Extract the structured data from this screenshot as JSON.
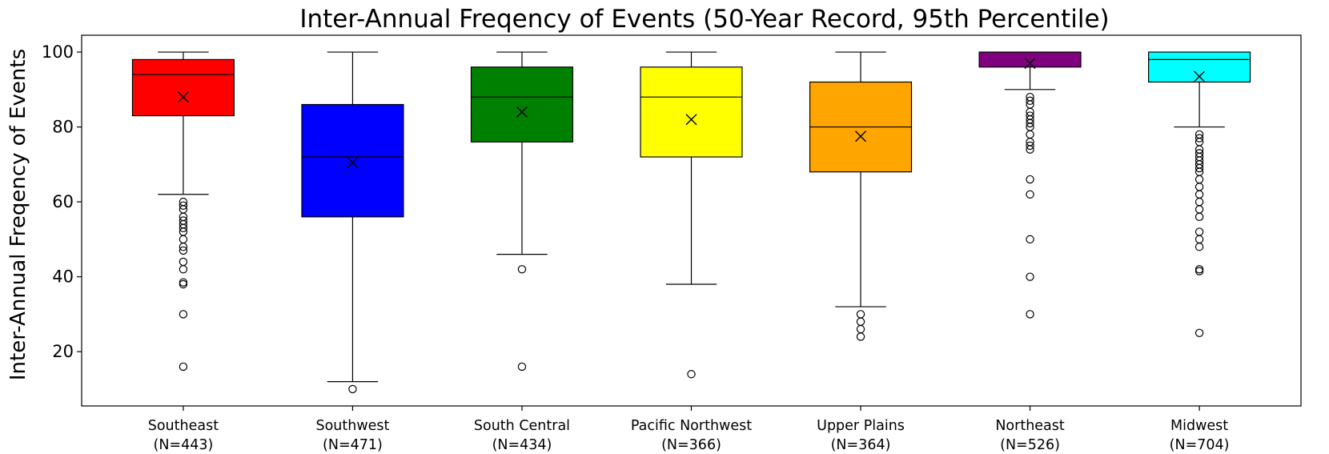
{
  "chart_data": {
    "type": "box",
    "title": "Inter-Annual Freqency of Events (50-Year Record, 95th Percentile)",
    "xlabel": "",
    "ylabel": "Inter-Annual Freqency of Events",
    "ylim": [
      5.5,
      104.5
    ],
    "yticks": [
      20,
      40,
      60,
      80,
      100
    ],
    "grid": false,
    "series": [
      {
        "name": "Southeast",
        "n_label": "(N=443)",
        "color": "#ff0000",
        "whisker_low": 62,
        "q1": 83,
        "median": 94,
        "q3": 98,
        "whisker_high": 100,
        "mean": 88,
        "outliers": [
          60,
          59,
          58,
          56,
          55,
          54,
          53,
          52,
          50,
          48,
          47,
          44,
          42,
          38.5,
          38,
          30,
          16
        ]
      },
      {
        "name": "Southwest",
        "n_label": "(N=471)",
        "color": "#0000ff",
        "whisker_low": 12,
        "q1": 56,
        "median": 72,
        "q3": 86,
        "whisker_high": 100,
        "mean": 70.5,
        "outliers": [
          10
        ]
      },
      {
        "name": "South Central",
        "n_label": "(N=434)",
        "color": "#008000",
        "whisker_low": 46,
        "q1": 76,
        "median": 88,
        "q3": 96,
        "whisker_high": 100,
        "mean": 84,
        "outliers": [
          42,
          16
        ]
      },
      {
        "name": "Pacific Northwest",
        "n_label": "(N=366)",
        "color": "#ffff00",
        "whisker_low": 38,
        "q1": 72,
        "median": 88,
        "q3": 96,
        "whisker_high": 100,
        "mean": 82,
        "outliers": [
          14
        ]
      },
      {
        "name": "Upper Plains",
        "n_label": "(N=364)",
        "color": "#ffa500",
        "whisker_low": 32,
        "q1": 68,
        "median": 80,
        "q3": 92,
        "whisker_high": 100,
        "mean": 77.5,
        "outliers": [
          30,
          28,
          26,
          24
        ]
      },
      {
        "name": "Northeast",
        "n_label": "(N=526)",
        "color": "#800080",
        "whisker_low": 90,
        "q1": 96,
        "median": 100,
        "q3": 100,
        "whisker_high": 100,
        "mean": 97,
        "outliers": [
          88,
          87,
          86,
          84,
          83,
          82,
          81,
          80,
          78,
          76,
          75,
          74,
          66,
          62,
          50,
          40,
          30
        ]
      },
      {
        "name": "Midwest",
        "n_label": "(N=704)",
        "color": "#00ffff",
        "whisker_low": 80,
        "q1": 92,
        "median": 98,
        "q3": 100,
        "whisker_high": 100,
        "mean": 93.5,
        "outliers": [
          78,
          77,
          76,
          74,
          73,
          72,
          71,
          70,
          69,
          68,
          66,
          64,
          62,
          60,
          58,
          56,
          52,
          50,
          48,
          42,
          41.5,
          25
        ]
      }
    ]
  }
}
